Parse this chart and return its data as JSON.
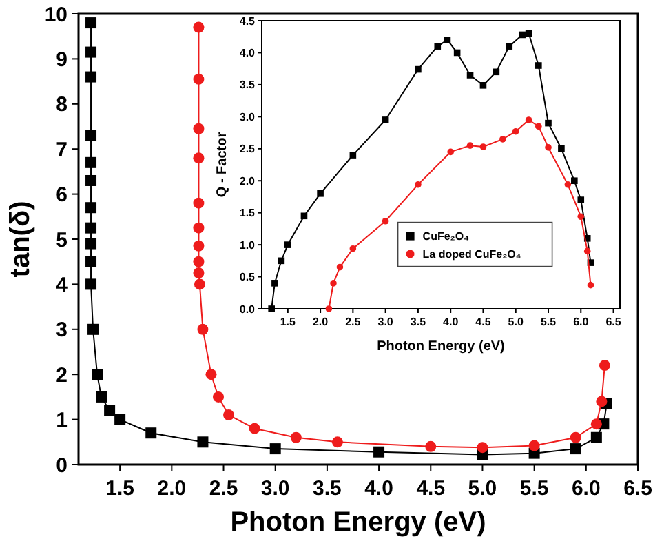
{
  "chart_data": [
    {
      "type": "line",
      "xlabel": "Photon Energy (eV)",
      "ylabel": "tan(δ)",
      "xlim": [
        1.1,
        6.5
      ],
      "ylim": [
        0,
        10
      ],
      "xticks": [
        1.5,
        {
          "value": 2,
          "label": "2.0"
        },
        2.5,
        {
          "value": 3,
          "label": "3.0"
        },
        3.5,
        {
          "value": 4,
          "label": "4.0"
        },
        4.5,
        {
          "value": 5,
          "label": "5.0"
        },
        5.5,
        {
          "value": 6,
          "label": "6.0"
        },
        6.5
      ],
      "yticks": [
        0,
        1,
        2,
        3,
        4,
        5,
        6,
        7,
        8,
        9,
        10
      ],
      "grid": false,
      "legend": false,
      "line_style": "solid",
      "series": [
        {
          "color": "#000000",
          "marker": "square",
          "x": [
            1.22,
            1.22,
            1.22,
            1.22,
            1.22,
            1.22,
            1.22,
            1.22,
            1.22,
            1.22,
            1.22,
            1.24,
            1.28,
            1.32,
            1.4,
            1.5,
            1.8,
            2.3,
            3.0,
            4.0,
            5.0,
            5.5,
            5.9,
            6.1,
            6.17,
            6.2
          ],
          "values": [
            9.8,
            9.15,
            8.6,
            7.3,
            6.7,
            6.3,
            5.7,
            5.25,
            4.9,
            4.5,
            4.0,
            3.0,
            2.0,
            1.5,
            1.2,
            1.0,
            0.7,
            0.5,
            0.35,
            0.28,
            0.22,
            0.25,
            0.35,
            0.6,
            0.9,
            1.35
          ]
        },
        {
          "color": "#ee1c1c",
          "marker": "circle",
          "x": [
            2.26,
            2.26,
            2.26,
            2.26,
            2.26,
            2.26,
            2.26,
            2.26,
            2.26,
            2.27,
            2.3,
            2.38,
            2.45,
            2.55,
            2.8,
            3.2,
            3.6,
            4.5,
            5.0,
            5.5,
            5.9,
            6.1,
            6.15,
            6.18
          ],
          "values": [
            9.7,
            8.55,
            7.45,
            6.8,
            5.8,
            5.25,
            4.85,
            4.5,
            4.25,
            4.0,
            3.0,
            2.0,
            1.5,
            1.1,
            0.8,
            0.6,
            0.5,
            0.4,
            0.38,
            0.42,
            0.6,
            0.9,
            1.4,
            2.2
          ]
        }
      ]
    },
    {
      "type": "line",
      "xlabel": "Photon Energy (eV)",
      "ylabel": "Q - Factor",
      "xlim": [
        1.1,
        6.6
      ],
      "ylim": [
        0,
        4.5
      ],
      "xticks": [
        1.5,
        {
          "value": 2,
          "label": "2.0"
        },
        2.5,
        {
          "value": 3,
          "label": "3.0"
        },
        3.5,
        {
          "value": 4,
          "label": "4.0"
        },
        4.5,
        {
          "value": 5,
          "label": "5.0"
        },
        5.5,
        {
          "value": 6,
          "label": "6.0"
        },
        6.5
      ],
      "yticks": [
        {
          "value": 0,
          "label": "0.0"
        },
        0.5,
        {
          "value": 1,
          "label": "1.0"
        },
        1.5,
        {
          "value": 2,
          "label": "2.0"
        },
        2.5,
        {
          "value": 3,
          "label": "3.0"
        },
        3.5,
        {
          "value": 4,
          "label": "4.0"
        },
        4.5
      ],
      "grid": false,
      "legend": "right",
      "line_style": "solid",
      "series": [
        {
          "name": "CuFe₂O₄",
          "color": "#000000",
          "marker": "square",
          "x": [
            1.25,
            1.3,
            1.4,
            1.5,
            1.75,
            2.0,
            2.5,
            3.0,
            3.5,
            3.8,
            3.95,
            4.1,
            4.3,
            4.5,
            4.7,
            4.9,
            5.1,
            5.2,
            5.35,
            5.5,
            5.7,
            5.9,
            6.0,
            6.1,
            6.15
          ],
          "values": [
            0.0,
            0.4,
            0.75,
            1.0,
            1.45,
            1.8,
            2.4,
            2.95,
            3.74,
            4.1,
            4.2,
            4.0,
            3.65,
            3.49,
            3.7,
            4.1,
            4.28,
            4.3,
            3.8,
            2.9,
            2.5,
            2.0,
            1.7,
            1.1,
            0.72
          ]
        },
        {
          "name": "La doped CuFe₂O₄",
          "color": "#ee1c1c",
          "marker": "circle",
          "x": [
            2.13,
            2.2,
            2.3,
            2.5,
            3.0,
            3.5,
            4.0,
            4.3,
            4.5,
            4.8,
            5.0,
            5.2,
            5.35,
            5.5,
            5.8,
            6.0,
            6.1,
            6.15
          ],
          "values": [
            0.0,
            0.4,
            0.65,
            0.94,
            1.37,
            1.94,
            2.45,
            2.55,
            2.53,
            2.65,
            2.77,
            2.95,
            2.85,
            2.52,
            1.94,
            1.44,
            0.9,
            0.37
          ]
        }
      ]
    }
  ]
}
